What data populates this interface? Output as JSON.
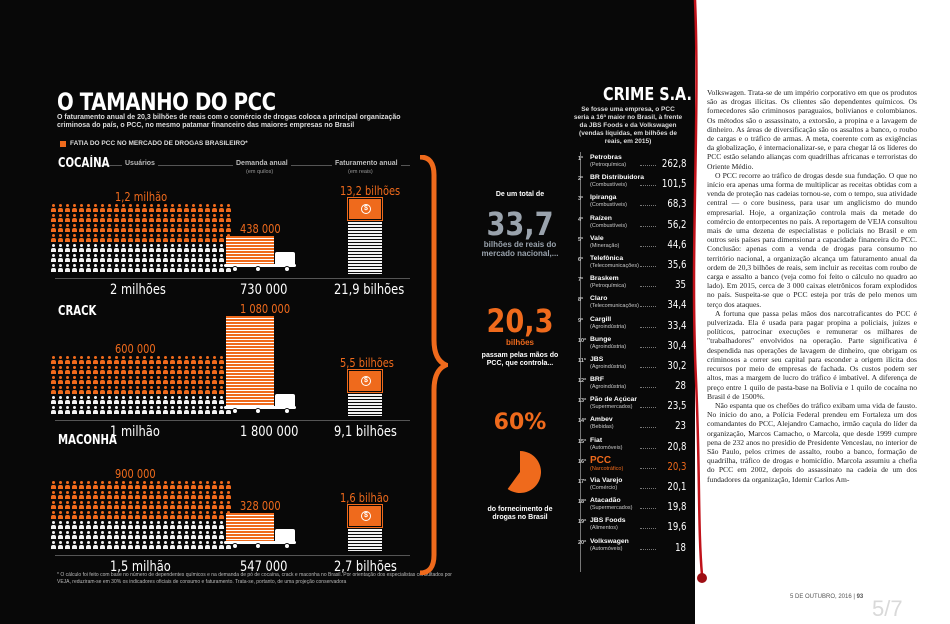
{
  "left": {
    "title": "O TAMANHO DO PCC",
    "subtitle_1": "O faturamento anual de 20,3 bilhões de reais com o comércio de drogas coloca a principal organização",
    "subtitle_2": "criminosa do país, o PCC, no mesmo patamar financeiro das maiores empresas no Brasil",
    "legend": "FATIA DO PCC NO MERCADO DE DROGAS BRASILEIRO*",
    "columns": {
      "users": "Usuários",
      "demand": "Demanda anual",
      "demand_unit": "(em quilos)",
      "revenue": "Faturamento anual",
      "revenue_unit": "(em reais)"
    },
    "sections": [
      {
        "name": "COCAÍNA",
        "pcc_users": "1,2 milhão",
        "users": "2 milhões",
        "pcc_demand": "438 000",
        "demand": "730 000",
        "pcc_revenue": "13,2 bilhões",
        "revenue": "21,9 bilhões",
        "pcc_users_share": 0.6,
        "pcc_demand_share": 0.6,
        "pcc_revenue_share": 0.6
      },
      {
        "name": "CRACK",
        "pcc_users": "600 000",
        "users": "1 milhão",
        "pcc_demand": "1 080 000",
        "demand": "1 800 000",
        "pcc_revenue": "5,5 bilhões",
        "revenue": "9,1 bilhões",
        "pcc_users_share": 0.6,
        "pcc_demand_share": 0.6,
        "pcc_revenue_share": 0.6
      },
      {
        "name": "MACONHA",
        "pcc_users": "900 000",
        "users": "1,5 milhão",
        "pcc_demand": "328 000",
        "demand": "547 000",
        "pcc_revenue": "1,6 bilhão",
        "revenue": "2,7 bilhões",
        "pcc_users_share": 0.6,
        "pcc_demand_share": 0.6,
        "pcc_revenue_share": 0.6
      }
    ],
    "footnote": "* O cálculo foi feito com base no número de dependentes químicos e na demanda de pó de cocaína, crack e maconha no Brasil. Por orientação dos especialistas consultados por VEJA, reduziram-se em 30% os indicadores oficiais de consumo e faturamento. Trata-se, portanto, de uma projeção conservadora"
  },
  "middle": {
    "intro": "De um total de",
    "total": "33,7",
    "total_label": "bilhões de reais do mercado nacional,...",
    "pcc": "20,3",
    "pcc_label": "bilhões",
    "pcc_text": "passam pelas mãos do PCC, que controla...",
    "share": "60%",
    "share_value": 60,
    "share_text": "do fornecimento de drogas no Brasil"
  },
  "ranking": {
    "title": "CRIME S.A.",
    "subtitle": "Se fosse uma empresa, o PCC seria a 16ª maior no Brasil, à frente da JBS Foods e da Volkswagen (vendas líquidas, em bilhões de reais, em 2015)",
    "rows": [
      {
        "pos": "1ª",
        "name": "Petrobras",
        "sector": "(Petroquímica)",
        "value": "262,8"
      },
      {
        "pos": "2ª",
        "name": "BR Distribuidora",
        "sector": "(Combustíveis)",
        "value": "101,5"
      },
      {
        "pos": "3ª",
        "name": "Ipiranga",
        "sector": "(Combustíveis)",
        "value": "68,3"
      },
      {
        "pos": "4ª",
        "name": "Raízen",
        "sector": "(Combustíveis)",
        "value": "56,2"
      },
      {
        "pos": "5ª",
        "name": "Vale",
        "sector": "(Mineração)",
        "value": "44,6"
      },
      {
        "pos": "6ª",
        "name": "Telefônica",
        "sector": "(Telecomunicações)",
        "value": "35,6"
      },
      {
        "pos": "7ª",
        "name": "Braskem",
        "sector": "(Petroquímica)",
        "value": "35"
      },
      {
        "pos": "8ª",
        "name": "Claro",
        "sector": "(Telecomunicações)",
        "value": "34,4"
      },
      {
        "pos": "9ª",
        "name": "Cargill",
        "sector": "(Agroindústria)",
        "value": "33,4"
      },
      {
        "pos": "10ª",
        "name": "Bunge",
        "sector": "(Agroindústria)",
        "value": "30,4"
      },
      {
        "pos": "11ª",
        "name": "JBS",
        "sector": "(Agroindústria)",
        "value": "30,2"
      },
      {
        "pos": "12ª",
        "name": "BRF",
        "sector": "(Agroindústria)",
        "value": "28"
      },
      {
        "pos": "13ª",
        "name": "Pão de Açúcar",
        "sector": "(Supermercados)",
        "value": "23,5"
      },
      {
        "pos": "14ª",
        "name": "Ambev",
        "sector": "(Bebidas)",
        "value": "23"
      },
      {
        "pos": "15ª",
        "name": "Fiat",
        "sector": "(Automóveis)",
        "value": "20,8"
      },
      {
        "pos": "16ª",
        "name": "PCC",
        "sector": "(Narcotráfico)",
        "value": "20,3"
      },
      {
        "pos": "17ª",
        "name": "Via Varejo",
        "sector": "(Comércio)",
        "value": "20,1"
      },
      {
        "pos": "18ª",
        "name": "Atacadão",
        "sector": "(Supermercados)",
        "value": "19,8"
      },
      {
        "pos": "19ª",
        "name": "JBS Foods",
        "sector": "(Alimentos)",
        "value": "19,6"
      },
      {
        "pos": "20ª",
        "name": "Volkswagen",
        "sector": "(Automóveis)",
        "value": "18"
      }
    ]
  },
  "article": {
    "paragraphs": [
      "Volkswagen. Trata-se de um império corporativo em que os produtos são as drogas ilícitas. Os clientes são dependentes químicos. Os fornecedores são criminosos paraguaios, bolivianos e colombianos. Os métodos são o assassinato, a extorsão, a propina e a lavagem de dinheiro. As áreas de diversificação são os assaltos a banco, o roubo de cargas e o tráfico de armas. A meta, coerente com as exigências da globalização, é internacionalizar-se, e para chegar lá os líderes do PCC estão selando alianças com quadrilhas africanas e terroristas do Oriente Médio.",
      "O PCC recorre ao tráfico de drogas desde sua fundação. O que no início era apenas uma forma de multiplicar as receitas obtidas com a venda de proteção nas cadeias tornou-se, com o tempo, sua atividade central — o core business, para usar um anglicismo do mundo empresarial. Hoje, a organização controla mais da metade do comércio de entorpecentes no país. A reportagem de VEJA consultou mais de uma dezena de especialistas e policiais no Brasil e em outros seis países para dimensionar a capacidade financeira do PCC. Conclusão: apenas com a venda de drogas para consumo no território nacional, a organização alcança um faturamento anual da ordem de 20,3 bilhões de reais, sem incluir as receitas com roubo de carga e assalto a banco (veja como foi feito o cálculo no quadro ao lado). Em 2015, cerca de 3 000 caixas eletrônicos foram explodidos no país. Suspeita-se que o PCC esteja por trás de pelo menos um terço dos ataques.",
      "A fortuna que passa pelas mãos dos narcotraficantes do PCC é pulverizada. Ela é usada para pagar propina a policiais, juízes e políticos, patrocinar execuções e remunerar os milhares de \"trabalhadores\" envolvidos na operação. Parte significativa é despendida nas operações de lavagem de dinheiro, que obrigam os criminosos a correr seu capital para esconder a origem ilícita dos recursos por meio de empresas de fachada. Os custos podem ser altos, mas a margem de lucro do tráfico é imbatível. A diferença de preço entre 1 quilo de pasta-base na Bolívia e 1 quilo de cocaína no Brasil é de 1500%.",
      "Não espanta que os chefões do tráfico exibam uma vida de fausto. No início do ano, a Polícia Federal prendeu em Fortaleza um dos comandantes do PCC, Alejandro Camacho, irmão caçula do líder da organização, Marcos Camacho, o Marcola, que desde 1999 cumpre pena de 232 anos no presídio de Presidente Venceslau, no interior de São Paulo, pelos crimes de assalto, roubo a banco, formação de quadrilha, tráfico de drogas e homicídio. Marcola assumiu a chefia do PCC em 2002, depois do assassinato na cadeia de um dos fundadores da organização, Idemir Carlos Am-"
    ],
    "footer": "5 DE OUTUBRO, 2016",
    "page": "93",
    "viewer_page": "5/7"
  }
}
